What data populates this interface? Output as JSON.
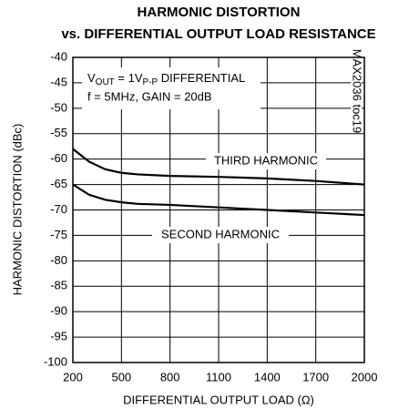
{
  "chart_data": {
    "type": "line",
    "title": [
      "HARMONIC DISTORTION",
      "vs. DIFFERENTIAL OUTPUT LOAD RESISTANCE"
    ],
    "xlabel": "DIFFERENTIAL OUTPUT LOAD (Ω)",
    "ylabel": "HARMONIC DISTORTION (dBc)",
    "annotation_lines": [
      [
        "V",
        "OUT",
        " = 1V",
        "P-P",
        " DIFFERENTIAL"
      ],
      [
        "f = 5MHz, GAIN = 20dB"
      ]
    ],
    "side_label": "MAX2036 toc19",
    "x": [
      200,
      300,
      400,
      500,
      600,
      800,
      1100,
      1400,
      1700,
      2000
    ],
    "series": [
      {
        "name": "THIRD HARMONIC",
        "color": "#000000",
        "values": [
          -58,
          -60.5,
          -62,
          -62.7,
          -63,
          -63.3,
          -63.5,
          -63.8,
          -64.3,
          -65
        ]
      },
      {
        "name": "SECOND HARMONIC",
        "color": "#000000",
        "values": [
          -65,
          -67,
          -68,
          -68.5,
          -68.8,
          -69,
          -69.5,
          -70,
          -70.5,
          -71
        ]
      }
    ],
    "xlim": [
      200,
      2000
    ],
    "xticks": [
      200,
      500,
      800,
      1100,
      1400,
      1700,
      2000
    ],
    "ylim": [
      -100,
      -40
    ],
    "yticks": [
      -40,
      -45,
      -50,
      -55,
      -60,
      -65,
      -70,
      -75,
      -80,
      -85,
      -90,
      -95,
      -100
    ],
    "grid": true
  }
}
